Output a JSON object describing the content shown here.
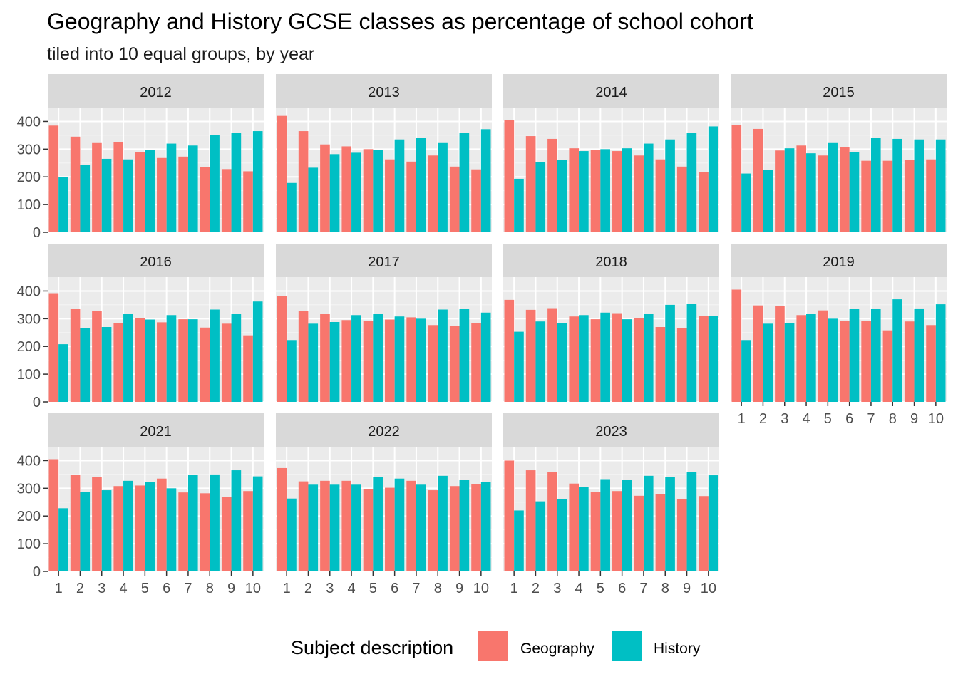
{
  "chart_data": {
    "type": "bar",
    "layout": "faceted grouped bars",
    "title": "Geography and History GCSE classes as percentage of school cohort",
    "subtitle": "tiled into 10 equal groups, by year",
    "xlabel": "",
    "ylabel": "",
    "ylim": [
      0,
      450
    ],
    "y_ticks": [
      0,
      100,
      200,
      300,
      400
    ],
    "categories": [
      "1",
      "2",
      "3",
      "4",
      "5",
      "6",
      "7",
      "8",
      "9",
      "10"
    ],
    "grid": true,
    "legend": {
      "title": "Subject description",
      "position": "bottom",
      "items": [
        {
          "name": "Geography",
          "color": "#F8766D"
        },
        {
          "name": "History",
          "color": "#00BFC4"
        }
      ]
    },
    "facets": [
      {
        "year": "2012",
        "series": [
          {
            "name": "Geography",
            "values": [
              385,
              345,
              322,
              325,
              290,
              268,
              273,
              235,
              228,
              220
            ]
          },
          {
            "name": "History",
            "values": [
              200,
              243,
              265,
              263,
              298,
              320,
              313,
              350,
              360,
              365
            ]
          }
        ]
      },
      {
        "year": "2013",
        "series": [
          {
            "name": "Geography",
            "values": [
              420,
              365,
              317,
              310,
              300,
              263,
              255,
              277,
              237,
              227
            ]
          },
          {
            "name": "History",
            "values": [
              178,
              233,
              282,
              287,
              297,
              335,
              342,
              322,
              360,
              372
            ]
          }
        ]
      },
      {
        "year": "2014",
        "series": [
          {
            "name": "Geography",
            "values": [
              405,
              347,
              337,
              303,
              298,
              293,
              277,
              263,
              237,
              218
            ]
          },
          {
            "name": "History",
            "values": [
              193,
              252,
              260,
              293,
              300,
              303,
              320,
              335,
              360,
              382
            ]
          }
        ]
      },
      {
        "year": "2015",
        "series": [
          {
            "name": "Geography",
            "values": [
              388,
              373,
              295,
              313,
              277,
              307,
              258,
              258,
              260,
              263
            ]
          },
          {
            "name": "History",
            "values": [
              212,
              225,
              303,
              285,
              322,
              290,
              340,
              337,
              335,
              335
            ]
          }
        ]
      },
      {
        "year": "2016",
        "series": [
          {
            "name": "Geography",
            "values": [
              392,
              335,
              328,
              285,
              303,
              287,
              298,
              268,
              282,
              240
            ]
          },
          {
            "name": "History",
            "values": [
              208,
              265,
              270,
              317,
              297,
              313,
              298,
              333,
              318,
              362
            ]
          }
        ]
      },
      {
        "year": "2017",
        "series": [
          {
            "name": "Geography",
            "values": [
              382,
              328,
              318,
              295,
              292,
              297,
              305,
              277,
              273,
              285
            ]
          },
          {
            "name": "History",
            "values": [
              223,
              282,
              288,
              313,
              317,
              308,
              300,
              333,
              335,
              322
            ]
          }
        ]
      },
      {
        "year": "2018",
        "series": [
          {
            "name": "Geography",
            "values": [
              368,
              332,
              338,
              308,
              298,
              320,
              302,
              270,
              265,
              310
            ]
          },
          {
            "name": "History",
            "values": [
              253,
              290,
              285,
              313,
              322,
              298,
              318,
              350,
              353,
              310
            ]
          }
        ]
      },
      {
        "year": "2019",
        "series": [
          {
            "name": "Geography",
            "values": [
              405,
              348,
              345,
              313,
              330,
              293,
              292,
              258,
              290,
              277
            ]
          },
          {
            "name": "History",
            "values": [
              223,
              282,
              285,
              317,
              300,
              335,
              335,
              370,
              337,
              352
            ]
          }
        ]
      },
      {
        "year": "2021",
        "series": [
          {
            "name": "Geography",
            "values": [
              405,
              348,
              340,
              308,
              310,
              335,
              285,
              282,
              270,
              290
            ]
          },
          {
            "name": "History",
            "values": [
              228,
              288,
              293,
              327,
              322,
              300,
              348,
              350,
              365,
              343
            ]
          }
        ]
      },
      {
        "year": "2022",
        "series": [
          {
            "name": "Geography",
            "values": [
              373,
              325,
              327,
              327,
              298,
              302,
              327,
              293,
              308,
              315
            ]
          },
          {
            "name": "History",
            "values": [
              263,
              313,
              313,
              313,
              340,
              335,
              313,
              345,
              330,
              322
            ]
          }
        ]
      },
      {
        "year": "2023",
        "series": [
          {
            "name": "Geography",
            "values": [
              400,
              365,
              358,
              317,
              288,
              290,
              273,
              280,
              262,
              272
            ]
          },
          {
            "name": "History",
            "values": [
              220,
              253,
              262,
              305,
              333,
              330,
              345,
              340,
              358,
              347
            ]
          }
        ]
      }
    ]
  }
}
